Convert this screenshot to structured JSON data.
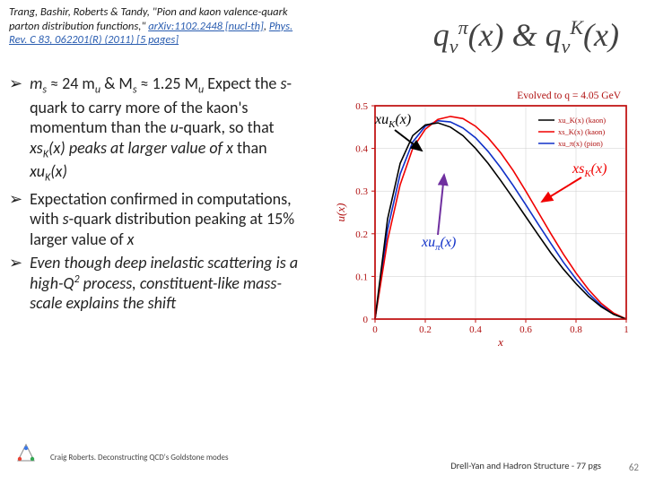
{
  "citation": {
    "authors": "Trang, Bashir, Roberts & Tandy, ",
    "title": "\"Pion and kaon valence-quark parton distribution functions,\" ",
    "link1": "arXiv:1102.2448 [nucl-th]",
    "link2": "Phys. Rev. C 83, 062201(R) (2011) [5 pages]"
  },
  "title": {
    "q": "q",
    "v": "v",
    "pi": "π",
    "x": "(x)",
    "amp": " & ",
    "K": "K"
  },
  "bullets": {
    "b1_a": "m",
    "b1_s": "s",
    "b1_b": " ≈ 24 m",
    "b1_u": "u",
    "b1_c": "  & M",
    "b1_d": " ≈ 1.25 M",
    "b1_e": " Expect the ",
    "b1_f": "s",
    "b1_g": "-quark to carry more of the kaon's momentum than the ",
    "b1_h": "u",
    "b1_i": "-quark, so that  ",
    "b1_j": "xs",
    "b1_k": "K",
    "b1_l": "(x)  peaks at larger value of  ",
    "b1_m": "x",
    "b1_n": "  than ",
    "b1_o": "xu",
    "b1_p": "(x)",
    "b2": "Expectation confirmed in computations, with ",
    "b2_a": "s",
    "b2_b": "-quark distribution peaking at 15% larger value of  ",
    "b2_c": "x",
    "b3": "Even though deep inelastic scattering is a high-Q",
    "b3_sup": "2",
    "b3_b": " process, constituent-like mass-scale explains the shift"
  },
  "annot": {
    "xuK_a": "xu",
    "xuK_b": "K",
    "xuK_c": "(x)",
    "xsK_a": "xs",
    "xsK_b": "K",
    "xsK_c": "(x)",
    "xupi_a": "xu",
    "xupi_b": "π",
    "xupi_c": "(x)"
  },
  "chart": {
    "xlim": [
      0,
      1
    ],
    "ylim": [
      0,
      0.5
    ],
    "xticks": [
      0,
      0.2,
      0.4,
      0.6,
      0.8,
      1
    ],
    "yticks": [
      0,
      0.1,
      0.2,
      0.3,
      0.4,
      0.5
    ],
    "xlabel": "x",
    "ylabel": "u(x)",
    "subtitle": "Evolved to q = 4.05 GeV",
    "legend": [
      "xu_K(x) (kaon)",
      "xs_K(x) (kaon)",
      "xu_π(x) (pion)"
    ],
    "legend_colors": [
      "#000000",
      "#f00000",
      "#1030c8"
    ],
    "frame_color": "#c01010",
    "grid_color": "#cccccc",
    "bg": "#ffffff",
    "label_fontsize": 11,
    "line_width": 1.6,
    "series": {
      "xuK": {
        "color": "#000000",
        "x": [
          0.0,
          0.05,
          0.1,
          0.15,
          0.2,
          0.25,
          0.3,
          0.35,
          0.4,
          0.45,
          0.5,
          0.55,
          0.6,
          0.65,
          0.7,
          0.75,
          0.8,
          0.85,
          0.9,
          0.95,
          1.0
        ],
        "y": [
          0.0,
          0.235,
          0.365,
          0.43,
          0.455,
          0.46,
          0.45,
          0.43,
          0.4,
          0.365,
          0.325,
          0.283,
          0.24,
          0.197,
          0.155,
          0.117,
          0.083,
          0.053,
          0.029,
          0.011,
          0.0
        ]
      },
      "xsK": {
        "color": "#f00000",
        "x": [
          0.0,
          0.05,
          0.1,
          0.15,
          0.2,
          0.25,
          0.3,
          0.35,
          0.4,
          0.45,
          0.5,
          0.55,
          0.6,
          0.65,
          0.7,
          0.75,
          0.8,
          0.85,
          0.9,
          0.95,
          1.0
        ],
        "y": [
          0.0,
          0.185,
          0.315,
          0.4,
          0.445,
          0.468,
          0.475,
          0.47,
          0.452,
          0.425,
          0.39,
          0.348,
          0.3,
          0.25,
          0.2,
          0.152,
          0.108,
          0.069,
          0.037,
          0.014,
          0.0
        ]
      },
      "xupi": {
        "color": "#1030c8",
        "x": [
          0.0,
          0.05,
          0.1,
          0.15,
          0.2,
          0.25,
          0.3,
          0.35,
          0.4,
          0.45,
          0.5,
          0.55,
          0.6,
          0.65,
          0.7,
          0.75,
          0.8,
          0.85,
          0.9,
          0.95,
          1.0
        ],
        "y": [
          0.0,
          0.21,
          0.34,
          0.415,
          0.452,
          0.465,
          0.462,
          0.448,
          0.425,
          0.393,
          0.355,
          0.313,
          0.268,
          0.222,
          0.177,
          0.133,
          0.094,
          0.06,
          0.032,
          0.012,
          0.0
        ]
      }
    }
  },
  "footer": {
    "left": "Craig Roberts. Deconstructing QCD's Goldstone modes",
    "right": "Drell-Yan and Hadron Structure - 77 pgs",
    "slide": "62"
  }
}
